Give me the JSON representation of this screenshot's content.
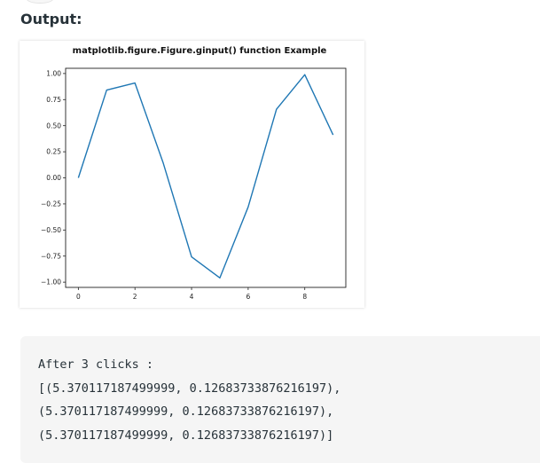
{
  "heading": "Output:",
  "chart_data": {
    "type": "line",
    "title": "matplotlib.figure.Figure.ginput() function Example",
    "xlabel": "",
    "ylabel": "",
    "x": [
      0,
      1,
      2,
      3,
      4,
      5,
      6,
      7,
      8,
      9
    ],
    "series": [
      {
        "values": [
          0.0,
          0.841,
          0.909,
          0.141,
          -0.757,
          -0.959,
          -0.279,
          0.657,
          0.989,
          0.412
        ],
        "color": "#1f77b4"
      }
    ],
    "xlim": [
      -0.45,
      9.45
    ],
    "ylim": [
      -1.05,
      1.05
    ],
    "xticks": [
      0,
      2,
      4,
      6,
      8
    ],
    "xtick_labels": [
      "0",
      "2",
      "4",
      "6",
      "8"
    ],
    "yticks": [
      1.0,
      0.75,
      0.5,
      0.25,
      0.0,
      -0.25,
      -0.5,
      -0.75,
      -1.0
    ],
    "ytick_labels": [
      "1.00",
      "0.75",
      "0.50",
      "0.25",
      "0.00",
      "−0.25",
      "−0.50",
      "−0.75",
      "−1.00"
    ],
    "grid": false,
    "legend": "none"
  },
  "console": {
    "lines": [
      "After 3 clicks :",
      "[(5.370117187499999, 0.12683733876216197),",
      "(5.370117187499999, 0.12683733876216197),",
      "(5.370117187499999, 0.12683733876216197)]"
    ]
  }
}
